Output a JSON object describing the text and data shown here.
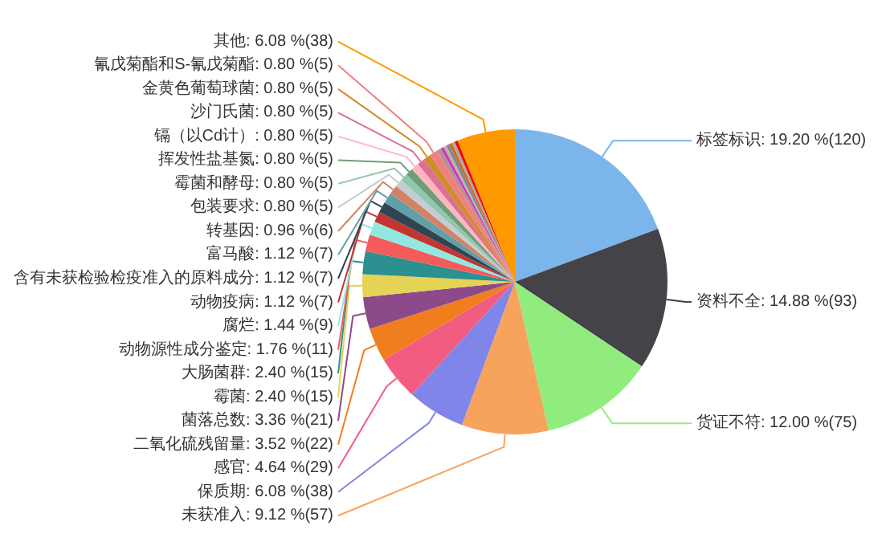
{
  "chart_data": {
    "type": "pie",
    "categories": [
      "标签标识",
      "资料不全",
      "货证不符",
      "未获准入",
      "保质期",
      "感官",
      "二氧化硫残留量",
      "菌落总数",
      "霉菌",
      "大肠菌群",
      "动物源性成分鉴定",
      "腐烂",
      "动物疫病",
      "含有未获检验检疫准入的原料成分",
      "富马酸",
      "转基因",
      "包装要求",
      "霉菌和酵母",
      "挥发性盐基氮",
      "镉（以Cd计）",
      "沙门氏菌",
      "金黄色葡萄球菌",
      "氰戊菊酯和S-氰戊菊酯",
      null,
      null,
      null,
      null,
      null,
      null,
      null,
      "其他"
    ],
    "values": [
      120,
      93,
      75,
      57,
      38,
      29,
      22,
      21,
      15,
      15,
      11,
      9,
      7,
      7,
      7,
      6,
      5,
      5,
      5,
      5,
      5,
      5,
      5,
      3,
      2,
      2,
      2,
      2,
      2,
      2,
      38
    ],
    "value_labels": [
      ": 19.20 %(120)",
      ": 14.88 %(93)",
      ": 12.00 %(75)",
      ": 9.12 %(57)",
      ": 6.08 %(38)",
      ": 4.64 %(29)",
      ": 3.52 %(22)",
      ": 3.36 %(21)",
      ": 2.40 %(15)",
      ": 2.40 %(15)",
      ": 1.76 %(11)",
      ": 1.44 %(9)",
      ": 1.12 %(7)",
      ": 1.12 %(7)",
      ": 1.12 %(7)",
      ": 0.96 %(6)",
      ": 0.80 %(5)",
      ": 0.80 %(5)",
      ": 0.80 %(5)",
      ": 0.80 %(5)",
      ": 0.80 %(5)",
      ": 0.80 %(5)",
      ": 0.80 %(5)",
      null,
      null,
      null,
      null,
      null,
      null,
      null,
      ": 6.08 %(38)"
    ],
    "colors": [
      "#7cb5ec",
      "#434348",
      "#90ed7d",
      "#f7a35c",
      "#8085e9",
      "#f15c80",
      "#f07e1e",
      "#8d4a8b",
      "#e4d354",
      "#2b908f",
      "#f45b5b",
      "#91e8e1",
      "#c23531",
      "#2f4554",
      "#61a0a8",
      "#d48265",
      "#c4ccd3",
      "#91c7ae",
      "#6e9e78",
      "#ffb6c1",
      "#db7093",
      "#d08b2a",
      "#f08080",
      "#bc8f8f",
      "#cc33cc",
      "#bdb0a0",
      "#778899",
      "#d2691e",
      "#a9a9a9",
      "#ff0000",
      "#ff9900"
    ]
  }
}
